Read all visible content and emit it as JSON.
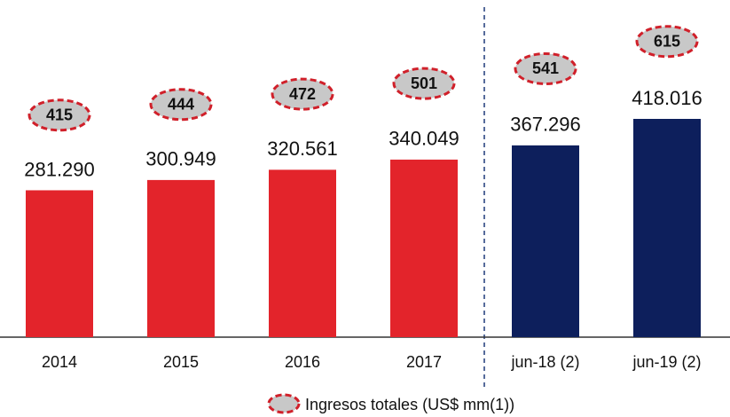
{
  "chart_data": {
    "type": "bar",
    "categories": [
      "2014",
      "2015",
      "2016",
      "2017",
      "jun-18 (2)",
      "jun-19 (2)"
    ],
    "values": [
      281290,
      300949,
      320561,
      340049,
      367296,
      418016
    ],
    "value_labels": [
      "281.290",
      "300.949",
      "320.561",
      "340.049",
      "367.296",
      "418.016"
    ],
    "colors": [
      "#e3242b",
      "#e3242b",
      "#e3242b",
      "#e3242b",
      "#0d1f5c",
      "#0d1f5c"
    ],
    "overlay": {
      "name": "Ingresos totales (US$ mm(1))",
      "values": [
        415,
        444,
        472,
        501,
        541,
        615
      ],
      "color": "#c8c8c8",
      "edge": "#d0202a"
    }
  }
}
